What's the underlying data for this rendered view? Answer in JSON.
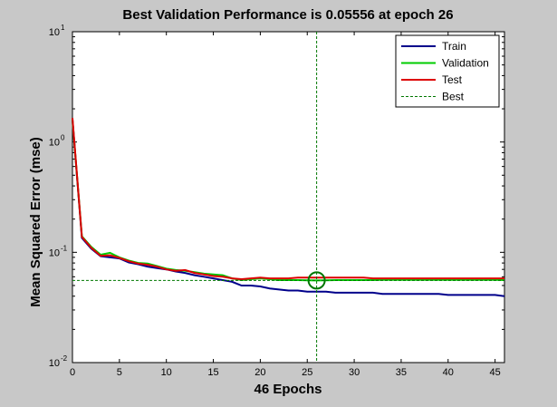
{
  "colors": {
    "figure_bg": "#c8c8c8",
    "plot_bg": "#ffffff",
    "train": "#00008b",
    "validation": "#00cc00",
    "test": "#dd0000",
    "best": "#007700"
  },
  "chart_data": {
    "type": "line",
    "title": "Best Validation Performance is 0.05556 at epoch 26",
    "xlabel": "46 Epochs",
    "ylabel": "Mean Squared Error  (mse)",
    "xlim": [
      0,
      46
    ],
    "ylim": [
      0.01,
      10
    ],
    "yscale": "log",
    "grid": false,
    "legend_position": "top-right",
    "x_ticks": [
      0,
      5,
      10,
      15,
      20,
      25,
      30,
      35,
      40,
      45
    ],
    "y_ticks": [
      {
        "value": 0.01,
        "base": "10",
        "exp": "-2"
      },
      {
        "value": 0.1,
        "base": "10",
        "exp": "-1"
      },
      {
        "value": 1,
        "base": "10",
        "exp": "0"
      },
      {
        "value": 10,
        "base": "10",
        "exp": "1"
      }
    ],
    "series": [
      {
        "name": "Train",
        "color": "#00008b",
        "x": [
          0,
          1,
          2,
          3,
          4,
          5,
          6,
          7,
          8,
          9,
          10,
          11,
          12,
          13,
          14,
          15,
          16,
          17,
          18,
          19,
          20,
          21,
          22,
          23,
          24,
          25,
          26,
          27,
          28,
          29,
          30,
          31,
          32,
          33,
          34,
          35,
          36,
          37,
          38,
          39,
          40,
          41,
          42,
          43,
          44,
          45,
          46
        ],
        "y": [
          1.6,
          0.135,
          0.108,
          0.092,
          0.09,
          0.088,
          0.081,
          0.078,
          0.074,
          0.072,
          0.07,
          0.067,
          0.065,
          0.062,
          0.06,
          0.058,
          0.056,
          0.054,
          0.05,
          0.05,
          0.049,
          0.047,
          0.046,
          0.045,
          0.045,
          0.044,
          0.044,
          0.044,
          0.043,
          0.043,
          0.043,
          0.043,
          0.043,
          0.042,
          0.042,
          0.042,
          0.042,
          0.042,
          0.042,
          0.042,
          0.041,
          0.041,
          0.041,
          0.041,
          0.041,
          0.041,
          0.04
        ]
      },
      {
        "name": "Validation",
        "color": "#00cc00",
        "x": [
          0,
          1,
          2,
          3,
          4,
          5,
          6,
          7,
          8,
          9,
          10,
          11,
          12,
          13,
          14,
          15,
          16,
          17,
          18,
          19,
          20,
          21,
          22,
          23,
          24,
          25,
          26,
          27,
          28,
          29,
          30,
          31,
          32,
          33,
          34,
          35,
          36,
          37,
          38,
          39,
          40,
          41,
          42,
          43,
          44,
          45,
          46
        ],
        "y": [
          1.6,
          0.14,
          0.112,
          0.095,
          0.099,
          0.09,
          0.084,
          0.08,
          0.079,
          0.075,
          0.071,
          0.069,
          0.068,
          0.066,
          0.064,
          0.063,
          0.062,
          0.058,
          0.056,
          0.057,
          0.058,
          0.057,
          0.056,
          0.056,
          0.056,
          0.0557,
          0.05556,
          0.0558,
          0.056,
          0.056,
          0.056,
          0.056,
          0.056,
          0.0562,
          0.0563,
          0.0563,
          0.0563,
          0.0562,
          0.0562,
          0.0562,
          0.0562,
          0.0562,
          0.0562,
          0.0562,
          0.0562,
          0.0562,
          0.056
        ]
      },
      {
        "name": "Test",
        "color": "#dd0000",
        "x": [
          0,
          1,
          2,
          3,
          4,
          5,
          6,
          7,
          8,
          9,
          10,
          11,
          12,
          13,
          14,
          15,
          16,
          17,
          18,
          19,
          20,
          21,
          22,
          23,
          24,
          25,
          26,
          27,
          28,
          29,
          30,
          31,
          32,
          33,
          34,
          35,
          36,
          37,
          38,
          39,
          40,
          41,
          42,
          43,
          44,
          45,
          46
        ],
        "y": [
          1.65,
          0.138,
          0.11,
          0.093,
          0.094,
          0.089,
          0.083,
          0.079,
          0.077,
          0.074,
          0.07,
          0.068,
          0.069,
          0.065,
          0.063,
          0.061,
          0.06,
          0.058,
          0.057,
          0.058,
          0.059,
          0.058,
          0.058,
          0.058,
          0.059,
          0.059,
          0.059,
          0.059,
          0.059,
          0.059,
          0.059,
          0.059,
          0.058,
          0.058,
          0.058,
          0.058,
          0.058,
          0.058,
          0.058,
          0.058,
          0.058,
          0.058,
          0.058,
          0.058,
          0.058,
          0.058,
          0.058
        ]
      }
    ],
    "best": {
      "name": "Best",
      "epoch": 26,
      "value": 0.05556
    }
  }
}
